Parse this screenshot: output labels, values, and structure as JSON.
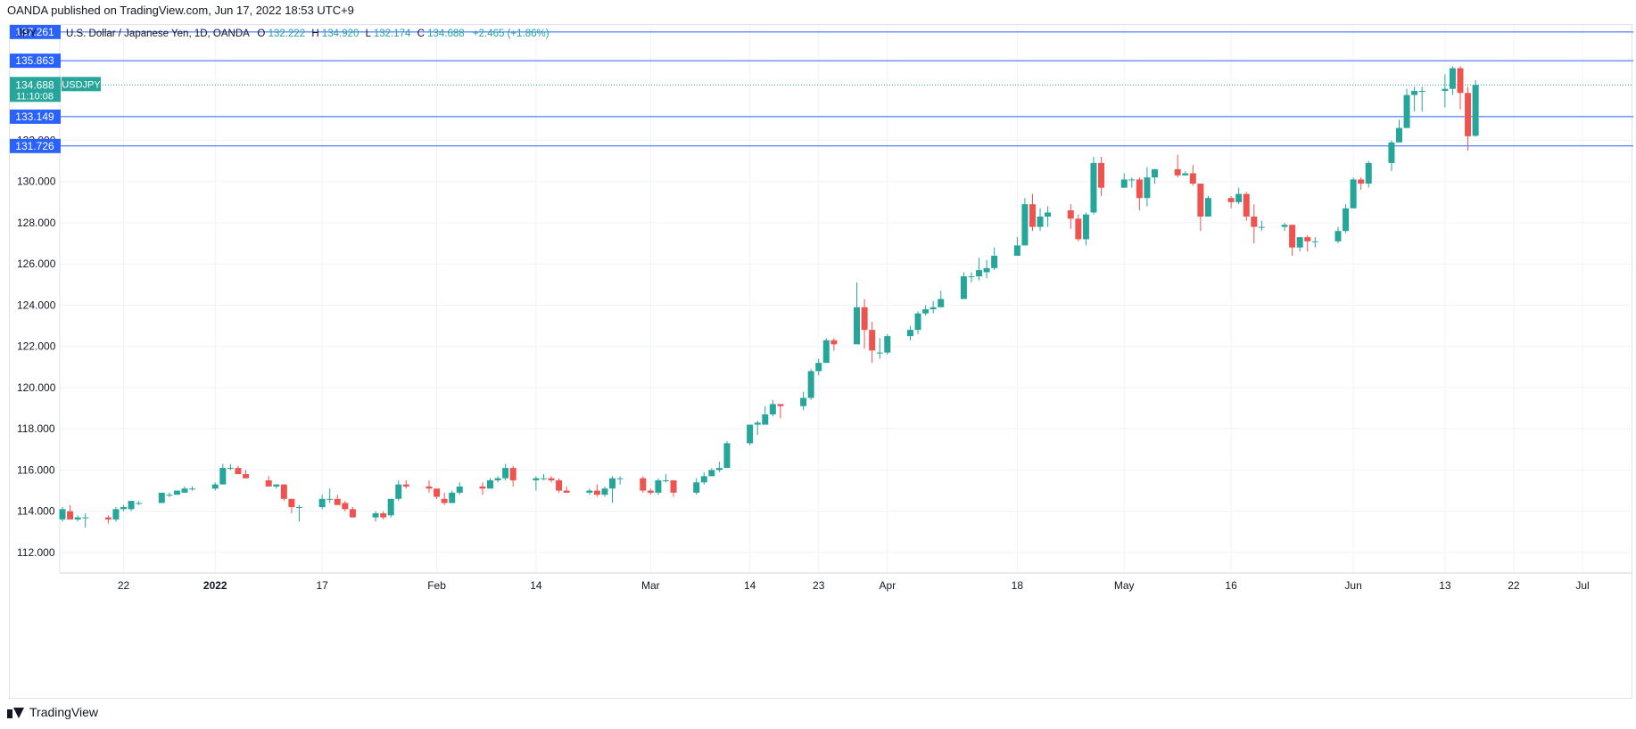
{
  "header": {
    "published_text": "OANDA published on TradingView.com, Jun 17, 2022 18:53 UTC+9"
  },
  "footer": {
    "brand": "TradingView",
    "logo_icon": "tradingview-logo-icon"
  },
  "legend": {
    "currency": "JPY",
    "instrument": "U.S. Dollar / Japanese Yen, 1D, OANDA",
    "o_label": "O",
    "o_value": "132.222",
    "h_label": "H",
    "h_value": "134.920",
    "l_label": "L",
    "l_value": "132.174",
    "c_label": "C",
    "c_value": "134.688",
    "change": "+2.465 (+1.86%)"
  },
  "colors": {
    "up": "#26a69a",
    "down": "#ef5350",
    "level_line": "#2962ff",
    "level_tag": "#2962ff",
    "price_tag": "#26a69a",
    "grid": "#f0f3fa",
    "axis_text": "#131722"
  },
  "chart_data": {
    "type": "candlestick",
    "title": "U.S. Dollar / Japanese Yen, 1D, OANDA",
    "symbol": "USDJPY",
    "ylim": [
      111.0,
      137.6
    ],
    "y_ticks": [
      "112.000",
      "114.000",
      "116.000",
      "118.000",
      "120.000",
      "122.000",
      "124.000",
      "126.000",
      "128.000",
      "130.000",
      "132.000"
    ],
    "x_ticks": [
      {
        "label": "22",
        "date": "2021-12-22"
      },
      {
        "label": "2022",
        "date": "2022-01-03",
        "bold": true
      },
      {
        "label": "17",
        "date": "2022-01-17"
      },
      {
        "label": "Feb",
        "date": "2022-02-01"
      },
      {
        "label": "14",
        "date": "2022-02-14"
      },
      {
        "label": "Mar",
        "date": "2022-03-01"
      },
      {
        "label": "14",
        "date": "2022-03-14"
      },
      {
        "label": "23",
        "date": "2022-03-23"
      },
      {
        "label": "Apr",
        "date": "2022-04-01"
      },
      {
        "label": "18",
        "date": "2022-04-18"
      },
      {
        "label": "May",
        "date": "2022-05-02"
      },
      {
        "label": "16",
        "date": "2022-05-16"
      },
      {
        "label": "Jun",
        "date": "2022-06-01"
      },
      {
        "label": "13",
        "date": "2022-06-13"
      },
      {
        "label": "22",
        "date": "2022-06-22"
      },
      {
        "label": "Jul",
        "date": "2022-07-01"
      }
    ],
    "horizontal_levels": [
      "137.261",
      "135.863",
      "133.149",
      "131.726"
    ],
    "last_price": {
      "value": "134.688",
      "countdown": "11:10:08",
      "label": "USDJPY"
    },
    "candles": [
      {
        "d": "2021-12-14",
        "o": 113.6,
        "h": 114.2,
        "l": 113.5,
        "c": 114.1
      },
      {
        "d": "2021-12-15",
        "o": 114.0,
        "h": 114.3,
        "l": 113.7,
        "c": 113.6
      },
      {
        "d": "2021-12-16",
        "o": 113.6,
        "h": 113.8,
        "l": 113.5,
        "c": 113.7
      },
      {
        "d": "2021-12-17",
        "o": 113.7,
        "h": 113.9,
        "l": 113.2,
        "c": 113.7
      },
      {
        "d": "2021-12-20",
        "o": 113.7,
        "h": 113.8,
        "l": 113.4,
        "c": 113.6
      },
      {
        "d": "2021-12-21",
        "o": 113.6,
        "h": 114.2,
        "l": 113.5,
        "c": 114.1
      },
      {
        "d": "2021-12-22",
        "o": 114.1,
        "h": 114.3,
        "l": 114.0,
        "c": 114.2
      },
      {
        "d": "2021-12-23",
        "o": 114.1,
        "h": 114.5,
        "l": 114.0,
        "c": 114.5
      },
      {
        "d": "2021-12-24",
        "o": 114.4,
        "h": 114.5,
        "l": 114.3,
        "c": 114.4
      },
      {
        "d": "2021-12-27",
        "o": 114.4,
        "h": 114.9,
        "l": 114.4,
        "c": 114.9
      },
      {
        "d": "2021-12-28",
        "o": 114.8,
        "h": 114.9,
        "l": 114.7,
        "c": 114.8
      },
      {
        "d": "2021-12-29",
        "o": 114.8,
        "h": 115.0,
        "l": 114.8,
        "c": 115.0
      },
      {
        "d": "2021-12-30",
        "o": 114.9,
        "h": 115.2,
        "l": 114.9,
        "c": 115.1
      },
      {
        "d": "2021-12-31",
        "o": 115.1,
        "h": 115.2,
        "l": 115.0,
        "c": 115.1
      },
      {
        "d": "2022-01-03",
        "o": 115.1,
        "h": 115.4,
        "l": 115.0,
        "c": 115.3
      },
      {
        "d": "2022-01-04",
        "o": 115.3,
        "h": 116.3,
        "l": 115.3,
        "c": 116.1
      },
      {
        "d": "2022-01-05",
        "o": 116.1,
        "h": 116.3,
        "l": 116.0,
        "c": 116.1
      },
      {
        "d": "2022-01-06",
        "o": 116.1,
        "h": 116.2,
        "l": 115.8,
        "c": 115.8
      },
      {
        "d": "2022-01-07",
        "o": 115.8,
        "h": 116.0,
        "l": 115.6,
        "c": 115.6
      },
      {
        "d": "2022-01-10",
        "o": 115.5,
        "h": 115.7,
        "l": 115.2,
        "c": 115.2
      },
      {
        "d": "2022-01-11",
        "o": 115.2,
        "h": 115.3,
        "l": 115.1,
        "c": 115.3
      },
      {
        "d": "2022-01-12",
        "o": 115.3,
        "h": 115.3,
        "l": 114.5,
        "c": 114.6
      },
      {
        "d": "2022-01-13",
        "o": 114.6,
        "h": 114.6,
        "l": 113.9,
        "c": 114.2
      },
      {
        "d": "2022-01-14",
        "o": 114.2,
        "h": 114.3,
        "l": 113.5,
        "c": 114.2
      },
      {
        "d": "2022-01-17",
        "o": 114.2,
        "h": 114.8,
        "l": 114.1,
        "c": 114.6
      },
      {
        "d": "2022-01-18",
        "o": 114.6,
        "h": 115.1,
        "l": 114.4,
        "c": 114.6
      },
      {
        "d": "2022-01-19",
        "o": 114.6,
        "h": 114.8,
        "l": 114.3,
        "c": 114.3
      },
      {
        "d": "2022-01-20",
        "o": 114.4,
        "h": 114.5,
        "l": 114.0,
        "c": 114.1
      },
      {
        "d": "2022-01-21",
        "o": 114.1,
        "h": 114.2,
        "l": 113.7,
        "c": 113.7
      },
      {
        "d": "2022-01-24",
        "o": 113.7,
        "h": 114.0,
        "l": 113.5,
        "c": 113.9
      },
      {
        "d": "2022-01-25",
        "o": 113.9,
        "h": 114.0,
        "l": 113.6,
        "c": 113.7
      },
      {
        "d": "2022-01-26",
        "o": 113.8,
        "h": 114.6,
        "l": 113.7,
        "c": 114.6
      },
      {
        "d": "2022-01-27",
        "o": 114.6,
        "h": 115.5,
        "l": 114.5,
        "c": 115.3
      },
      {
        "d": "2022-01-28",
        "o": 115.3,
        "h": 115.5,
        "l": 115.1,
        "c": 115.2
      },
      {
        "d": "2022-01-31",
        "o": 115.2,
        "h": 115.5,
        "l": 114.9,
        "c": 115.1
      },
      {
        "d": "2022-02-01",
        "o": 115.1,
        "h": 115.1,
        "l": 114.6,
        "c": 114.7
      },
      {
        "d": "2022-02-02",
        "o": 114.6,
        "h": 114.9,
        "l": 114.3,
        "c": 114.4
      },
      {
        "d": "2022-02-03",
        "o": 114.4,
        "h": 115.0,
        "l": 114.4,
        "c": 114.9
      },
      {
        "d": "2022-02-04",
        "o": 114.9,
        "h": 115.4,
        "l": 114.8,
        "c": 115.2
      },
      {
        "d": "2022-02-07",
        "o": 115.2,
        "h": 115.4,
        "l": 114.8,
        "c": 115.1
      },
      {
        "d": "2022-02-08",
        "o": 115.1,
        "h": 115.6,
        "l": 115.1,
        "c": 115.5
      },
      {
        "d": "2022-02-09",
        "o": 115.5,
        "h": 115.7,
        "l": 115.4,
        "c": 115.6
      },
      {
        "d": "2022-02-10",
        "o": 115.6,
        "h": 116.3,
        "l": 115.5,
        "c": 116.1
      },
      {
        "d": "2022-02-11",
        "o": 116.1,
        "h": 116.2,
        "l": 115.2,
        "c": 115.5
      },
      {
        "d": "2022-02-14",
        "o": 115.5,
        "h": 115.7,
        "l": 115.0,
        "c": 115.6
      },
      {
        "d": "2022-02-15",
        "o": 115.6,
        "h": 115.8,
        "l": 115.5,
        "c": 115.6
      },
      {
        "d": "2022-02-16",
        "o": 115.6,
        "h": 115.7,
        "l": 115.4,
        "c": 115.5
      },
      {
        "d": "2022-02-17",
        "o": 115.5,
        "h": 115.6,
        "l": 114.9,
        "c": 115.0
      },
      {
        "d": "2022-02-18",
        "o": 115.0,
        "h": 115.2,
        "l": 114.9,
        "c": 114.9
      },
      {
        "d": "2022-02-21",
        "o": 114.9,
        "h": 115.1,
        "l": 114.8,
        "c": 115.0
      },
      {
        "d": "2022-02-22",
        "o": 115.0,
        "h": 115.3,
        "l": 114.7,
        "c": 114.8
      },
      {
        "d": "2022-02-23",
        "o": 114.8,
        "h": 115.2,
        "l": 114.7,
        "c": 115.1
      },
      {
        "d": "2022-02-24",
        "o": 115.1,
        "h": 115.7,
        "l": 114.4,
        "c": 115.6
      },
      {
        "d": "2022-02-25",
        "o": 115.6,
        "h": 115.7,
        "l": 115.3,
        "c": 115.6
      },
      {
        "d": "2022-02-28",
        "o": 115.6,
        "h": 115.7,
        "l": 114.9,
        "c": 115.0
      },
      {
        "d": "2022-03-01",
        "o": 115.0,
        "h": 115.1,
        "l": 114.8,
        "c": 114.9
      },
      {
        "d": "2022-03-02",
        "o": 114.9,
        "h": 115.6,
        "l": 114.8,
        "c": 115.5
      },
      {
        "d": "2022-03-03",
        "o": 115.5,
        "h": 115.8,
        "l": 115.4,
        "c": 115.5
      },
      {
        "d": "2022-03-04",
        "o": 115.5,
        "h": 115.5,
        "l": 114.7,
        "c": 114.9
      },
      {
        "d": "2022-03-07",
        "o": 114.9,
        "h": 115.6,
        "l": 114.8,
        "c": 115.4
      },
      {
        "d": "2022-03-08",
        "o": 115.4,
        "h": 115.9,
        "l": 115.3,
        "c": 115.7
      },
      {
        "d": "2022-03-09",
        "o": 115.7,
        "h": 116.1,
        "l": 115.7,
        "c": 116.0
      },
      {
        "d": "2022-03-10",
        "o": 116.0,
        "h": 116.4,
        "l": 115.9,
        "c": 116.1
      },
      {
        "d": "2022-03-11",
        "o": 116.1,
        "h": 117.4,
        "l": 116.1,
        "c": 117.3
      },
      {
        "d": "2022-03-14",
        "o": 117.3,
        "h": 118.2,
        "l": 117.2,
        "c": 118.2
      },
      {
        "d": "2022-03-15",
        "o": 118.2,
        "h": 118.4,
        "l": 117.7,
        "c": 118.3
      },
      {
        "d": "2022-03-16",
        "o": 118.2,
        "h": 119.1,
        "l": 118.2,
        "c": 118.7
      },
      {
        "d": "2022-03-17",
        "o": 118.7,
        "h": 119.4,
        "l": 118.6,
        "c": 119.2
      },
      {
        "d": "2022-03-18",
        "o": 119.2,
        "h": 119.2,
        "l": 118.5,
        "c": 119.1
      },
      {
        "d": "2022-03-21",
        "o": 119.1,
        "h": 119.8,
        "l": 118.9,
        "c": 119.5
      },
      {
        "d": "2022-03-22",
        "o": 119.5,
        "h": 120.9,
        "l": 119.4,
        "c": 120.8
      },
      {
        "d": "2022-03-23",
        "o": 120.8,
        "h": 121.4,
        "l": 120.6,
        "c": 121.2
      },
      {
        "d": "2022-03-24",
        "o": 121.2,
        "h": 122.4,
        "l": 121.2,
        "c": 122.3
      },
      {
        "d": "2022-03-25",
        "o": 122.3,
        "h": 122.4,
        "l": 121.8,
        "c": 122.1
      },
      {
        "d": "2022-03-28",
        "o": 122.1,
        "h": 125.1,
        "l": 122.1,
        "c": 123.9
      },
      {
        "d": "2022-03-29",
        "o": 123.9,
        "h": 124.3,
        "l": 121.9,
        "c": 122.8
      },
      {
        "d": "2022-03-30",
        "o": 122.8,
        "h": 123.2,
        "l": 121.2,
        "c": 121.8
      },
      {
        "d": "2022-03-31",
        "o": 121.7,
        "h": 122.4,
        "l": 121.4,
        "c": 121.7
      },
      {
        "d": "2022-04-01",
        "o": 121.7,
        "h": 122.6,
        "l": 121.6,
        "c": 122.5
      },
      {
        "d": "2022-04-04",
        "o": 122.5,
        "h": 123.0,
        "l": 122.3,
        "c": 122.8
      },
      {
        "d": "2022-04-05",
        "o": 122.8,
        "h": 123.7,
        "l": 122.6,
        "c": 123.6
      },
      {
        "d": "2022-04-06",
        "o": 123.6,
        "h": 124.0,
        "l": 123.5,
        "c": 123.8
      },
      {
        "d": "2022-04-07",
        "o": 123.8,
        "h": 124.2,
        "l": 123.6,
        "c": 123.9
      },
      {
        "d": "2022-04-08",
        "o": 123.9,
        "h": 124.7,
        "l": 123.9,
        "c": 124.3
      },
      {
        "d": "2022-04-11",
        "o": 124.3,
        "h": 125.6,
        "l": 124.3,
        "c": 125.4
      },
      {
        "d": "2022-04-12",
        "o": 125.4,
        "h": 125.6,
        "l": 125.1,
        "c": 125.4
      },
      {
        "d": "2022-04-13",
        "o": 125.4,
        "h": 126.3,
        "l": 125.2,
        "c": 125.7
      },
      {
        "d": "2022-04-14",
        "o": 125.6,
        "h": 126.2,
        "l": 125.3,
        "c": 125.8
      },
      {
        "d": "2022-04-15",
        "o": 125.8,
        "h": 126.8,
        "l": 125.7,
        "c": 126.4
      },
      {
        "d": "2022-04-18",
        "o": 126.4,
        "h": 127.3,
        "l": 126.4,
        "c": 126.9
      },
      {
        "d": "2022-04-19",
        "o": 126.9,
        "h": 129.2,
        "l": 126.9,
        "c": 128.9
      },
      {
        "d": "2022-04-20",
        "o": 128.9,
        "h": 129.4,
        "l": 127.6,
        "c": 127.8
      },
      {
        "d": "2022-04-21",
        "o": 127.8,
        "h": 128.7,
        "l": 127.6,
        "c": 128.3
      },
      {
        "d": "2022-04-22",
        "o": 128.3,
        "h": 128.8,
        "l": 127.8,
        "c": 128.5
      },
      {
        "d": "2022-04-25",
        "o": 128.6,
        "h": 128.9,
        "l": 127.7,
        "c": 128.2
      },
      {
        "d": "2022-04-26",
        "o": 128.2,
        "h": 128.4,
        "l": 127.1,
        "c": 127.2
      },
      {
        "d": "2022-04-27",
        "o": 127.2,
        "h": 128.5,
        "l": 126.9,
        "c": 128.4
      },
      {
        "d": "2022-04-28",
        "o": 128.5,
        "h": 131.2,
        "l": 128.4,
        "c": 130.9
      },
      {
        "d": "2022-04-29",
        "o": 130.9,
        "h": 131.2,
        "l": 129.3,
        "c": 129.7
      },
      {
        "d": "2022-05-02",
        "o": 129.7,
        "h": 130.4,
        "l": 129.7,
        "c": 130.1
      },
      {
        "d": "2022-05-03",
        "o": 130.1,
        "h": 130.2,
        "l": 129.7,
        "c": 130.1
      },
      {
        "d": "2022-05-04",
        "o": 130.1,
        "h": 130.2,
        "l": 128.6,
        "c": 129.2
      },
      {
        "d": "2022-05-05",
        "o": 129.2,
        "h": 130.7,
        "l": 128.8,
        "c": 130.2
      },
      {
        "d": "2022-05-06",
        "o": 130.2,
        "h": 130.6,
        "l": 129.9,
        "c": 130.6
      },
      {
        "d": "2022-05-09",
        "o": 130.6,
        "h": 131.3,
        "l": 130.2,
        "c": 130.3
      },
      {
        "d": "2022-05-10",
        "o": 130.3,
        "h": 130.5,
        "l": 130.3,
        "c": 130.4
      },
      {
        "d": "2022-05-11",
        "o": 130.4,
        "h": 130.8,
        "l": 129.8,
        "c": 129.9
      },
      {
        "d": "2022-05-12",
        "o": 129.9,
        "h": 129.9,
        "l": 127.6,
        "c": 128.3
      },
      {
        "d": "2022-05-13",
        "o": 128.3,
        "h": 129.3,
        "l": 128.3,
        "c": 129.2
      },
      {
        "d": "2022-05-16",
        "o": 129.2,
        "h": 129.3,
        "l": 128.7,
        "c": 129.0
      },
      {
        "d": "2022-05-17",
        "o": 129.0,
        "h": 129.7,
        "l": 128.9,
        "c": 129.4
      },
      {
        "d": "2022-05-18",
        "o": 129.4,
        "h": 129.5,
        "l": 128.1,
        "c": 128.3
      },
      {
        "d": "2022-05-19",
        "o": 128.3,
        "h": 128.9,
        "l": 127.0,
        "c": 127.8
      },
      {
        "d": "2022-05-20",
        "o": 127.8,
        "h": 128.1,
        "l": 127.6,
        "c": 127.8
      },
      {
        "d": "2022-05-23",
        "o": 127.8,
        "h": 128.0,
        "l": 127.6,
        "c": 127.9
      },
      {
        "d": "2022-05-24",
        "o": 127.9,
        "h": 127.9,
        "l": 126.4,
        "c": 126.8
      },
      {
        "d": "2022-05-25",
        "o": 126.8,
        "h": 127.3,
        "l": 126.6,
        "c": 127.3
      },
      {
        "d": "2022-05-26",
        "o": 127.3,
        "h": 127.4,
        "l": 126.6,
        "c": 127.1
      },
      {
        "d": "2022-05-27",
        "o": 127.1,
        "h": 127.3,
        "l": 126.8,
        "c": 127.1
      },
      {
        "d": "2022-05-30",
        "o": 127.1,
        "h": 127.8,
        "l": 127.0,
        "c": 127.6
      },
      {
        "d": "2022-05-31",
        "o": 127.6,
        "h": 128.9,
        "l": 127.5,
        "c": 128.7
      },
      {
        "d": "2022-06-01",
        "o": 128.7,
        "h": 130.2,
        "l": 128.7,
        "c": 130.1
      },
      {
        "d": "2022-06-02",
        "o": 130.1,
        "h": 130.2,
        "l": 129.6,
        "c": 129.9
      },
      {
        "d": "2022-06-03",
        "o": 129.9,
        "h": 131.0,
        "l": 129.7,
        "c": 130.9
      },
      {
        "d": "2022-06-06",
        "o": 130.9,
        "h": 132.0,
        "l": 130.5,
        "c": 131.9
      },
      {
        "d": "2022-06-07",
        "o": 131.9,
        "h": 133.0,
        "l": 131.9,
        "c": 132.6
      },
      {
        "d": "2022-06-08",
        "o": 132.6,
        "h": 134.5,
        "l": 132.6,
        "c": 134.2
      },
      {
        "d": "2022-06-09",
        "o": 134.2,
        "h": 134.6,
        "l": 133.4,
        "c": 134.4
      },
      {
        "d": "2022-06-10",
        "o": 134.4,
        "h": 134.6,
        "l": 133.4,
        "c": 134.4
      },
      {
        "d": "2022-06-13",
        "o": 134.4,
        "h": 135.2,
        "l": 133.6,
        "c": 134.5
      },
      {
        "d": "2022-06-14",
        "o": 134.5,
        "h": 135.6,
        "l": 134.2,
        "c": 135.5
      },
      {
        "d": "2022-06-15",
        "o": 135.5,
        "h": 135.6,
        "l": 133.5,
        "c": 134.3
      },
      {
        "d": "2022-06-16",
        "o": 134.3,
        "h": 134.6,
        "l": 131.5,
        "c": 132.2
      },
      {
        "d": "2022-06-17",
        "o": 132.222,
        "h": 134.92,
        "l": 132.174,
        "c": 134.688
      }
    ]
  }
}
